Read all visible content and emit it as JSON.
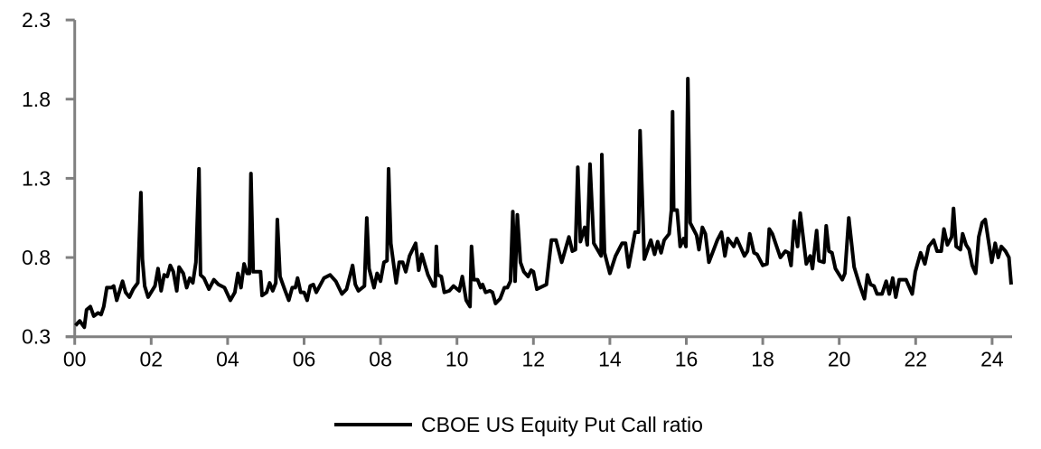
{
  "chart_data": {
    "type": "line",
    "title": "",
    "xlabel": "",
    "ylabel": "",
    "xlim": [
      0,
      24.6
    ],
    "ylim": [
      0.3,
      2.3
    ],
    "x_ticks": [
      0,
      2,
      4,
      6,
      8,
      10,
      12,
      14,
      16,
      18,
      20,
      22,
      24
    ],
    "x_tick_labels": [
      "00",
      "02",
      "04",
      "06",
      "08",
      "10",
      "12",
      "14",
      "16",
      "18",
      "20",
      "22",
      "24"
    ],
    "y_ticks": [
      0.3,
      0.8,
      1.3,
      1.8,
      2.3
    ],
    "y_tick_labels": [
      "0.3",
      "0.8",
      "1.3",
      "1.8",
      "2.3"
    ],
    "grid": false,
    "legend_position": "bottom",
    "colors": {
      "line": "#000000",
      "axis": "#808080"
    },
    "series": [
      {
        "name": "CBOE US Equity Put Call ratio",
        "x": [
          0.02,
          0.13,
          0.25,
          0.31,
          0.41,
          0.5,
          0.61,
          0.69,
          0.76,
          0.84,
          0.96,
          1.02,
          1.1,
          1.25,
          1.33,
          1.43,
          1.53,
          1.65,
          1.73,
          1.77,
          1.83,
          1.92,
          2.1,
          2.18,
          2.26,
          2.34,
          2.42,
          2.5,
          2.58,
          2.67,
          2.73,
          2.84,
          2.93,
          3.01,
          3.09,
          3.17,
          3.25,
          3.29,
          3.38,
          3.51,
          3.64,
          3.76,
          3.92,
          4.07,
          4.19,
          4.27,
          4.35,
          4.43,
          4.51,
          4.57,
          4.61,
          4.67,
          4.86,
          4.9,
          5.02,
          5.1,
          5.18,
          5.26,
          5.3,
          5.37,
          5.49,
          5.6,
          5.69,
          5.77,
          5.83,
          5.91,
          6.0,
          6.08,
          6.16,
          6.24,
          6.32,
          6.52,
          6.68,
          6.83,
          6.99,
          7.11,
          7.27,
          7.34,
          7.42,
          7.58,
          7.64,
          7.7,
          7.83,
          7.91,
          8.0,
          8.09,
          8.17,
          8.21,
          8.27,
          8.41,
          8.49,
          8.58,
          8.66,
          8.76,
          8.84,
          8.92,
          9.0,
          9.08,
          9.24,
          9.38,
          9.43,
          9.46,
          9.5,
          9.59,
          9.67,
          9.8,
          9.91,
          10.06,
          10.14,
          10.24,
          10.34,
          10.38,
          10.44,
          10.54,
          10.62,
          10.67,
          10.75,
          10.86,
          10.93,
          11.01,
          11.13,
          11.24,
          11.32,
          11.4,
          11.46,
          11.52,
          11.58,
          11.66,
          11.75,
          11.86,
          11.94,
          12.0,
          12.09,
          12.34,
          12.47,
          12.59,
          12.74,
          12.93,
          13.02,
          13.1,
          13.16,
          13.23,
          13.34,
          13.41,
          13.48,
          13.58,
          13.77,
          13.79,
          13.86,
          14.0,
          14.15,
          14.32,
          14.41,
          14.49,
          14.66,
          14.75,
          14.79,
          14.9,
          15.07,
          15.17,
          15.25,
          15.34,
          15.42,
          15.55,
          15.61,
          15.64,
          15.67,
          15.76,
          15.84,
          15.93,
          15.99,
          16.04,
          16.1,
          16.27,
          16.33,
          16.42,
          16.5,
          16.59,
          16.81,
          16.92,
          17.01,
          17.09,
          17.24,
          17.32,
          17.52,
          17.6,
          17.66,
          17.77,
          17.85,
          18.0,
          18.11,
          18.17,
          18.25,
          18.46,
          18.59,
          18.67,
          18.74,
          18.82,
          18.91,
          18.98,
          19.14,
          19.24,
          19.3,
          19.41,
          19.47,
          19.6,
          19.66,
          19.73,
          19.81,
          19.9,
          20.08,
          20.15,
          20.25,
          20.39,
          20.53,
          20.66,
          20.74,
          20.82,
          20.91,
          20.99,
          21.12,
          21.23,
          21.31,
          21.4,
          21.48,
          21.57,
          21.75,
          21.91,
          21.99,
          22.13,
          22.24,
          22.34,
          22.47,
          22.56,
          22.67,
          22.74,
          22.83,
          22.94,
          22.99,
          23.06,
          23.17,
          23.23,
          23.32,
          23.4,
          23.48,
          23.57,
          23.65,
          23.74,
          23.82,
          23.99,
          24.08,
          24.16,
          24.24,
          24.35,
          24.44,
          24.5
        ],
        "y": [
          0.37,
          0.4,
          0.36,
          0.47,
          0.49,
          0.43,
          0.45,
          0.44,
          0.49,
          0.61,
          0.61,
          0.62,
          0.53,
          0.65,
          0.58,
          0.55,
          0.6,
          0.64,
          1.21,
          0.79,
          0.62,
          0.55,
          0.62,
          0.73,
          0.59,
          0.69,
          0.68,
          0.75,
          0.71,
          0.59,
          0.74,
          0.7,
          0.61,
          0.67,
          0.64,
          0.77,
          1.36,
          0.69,
          0.67,
          0.6,
          0.66,
          0.63,
          0.61,
          0.53,
          0.58,
          0.7,
          0.61,
          0.76,
          0.7,
          0.7,
          1.33,
          0.71,
          0.71,
          0.56,
          0.58,
          0.64,
          0.59,
          0.64,
          1.04,
          0.68,
          0.6,
          0.53,
          0.61,
          0.61,
          0.67,
          0.58,
          0.58,
          0.53,
          0.62,
          0.63,
          0.58,
          0.67,
          0.69,
          0.65,
          0.57,
          0.6,
          0.75,
          0.63,
          0.59,
          0.62,
          1.05,
          0.73,
          0.61,
          0.7,
          0.65,
          0.77,
          0.78,
          1.36,
          0.89,
          0.64,
          0.77,
          0.77,
          0.71,
          0.81,
          0.85,
          0.89,
          0.72,
          0.82,
          0.69,
          0.62,
          0.62,
          0.87,
          0.69,
          0.68,
          0.58,
          0.59,
          0.62,
          0.59,
          0.68,
          0.53,
          0.49,
          0.87,
          0.66,
          0.66,
          0.61,
          0.63,
          0.58,
          0.59,
          0.58,
          0.51,
          0.54,
          0.61,
          0.61,
          0.65,
          1.09,
          0.65,
          1.07,
          0.77,
          0.71,
          0.68,
          0.72,
          0.71,
          0.6,
          0.63,
          0.91,
          0.91,
          0.77,
          0.93,
          0.84,
          0.85,
          1.37,
          0.9,
          0.99,
          0.88,
          1.39,
          0.89,
          0.81,
          1.45,
          0.83,
          0.7,
          0.81,
          0.89,
          0.89,
          0.74,
          0.96,
          0.96,
          1.6,
          0.79,
          0.91,
          0.82,
          0.9,
          0.83,
          0.91,
          0.95,
          1.1,
          1.72,
          1.1,
          1.1,
          0.87,
          0.92,
          0.87,
          1.93,
          1.02,
          0.94,
          0.85,
          0.99,
          0.95,
          0.77,
          0.91,
          0.96,
          0.81,
          0.92,
          0.87,
          0.92,
          0.81,
          0.84,
          0.95,
          0.83,
          0.82,
          0.75,
          0.76,
          0.98,
          0.95,
          0.8,
          0.84,
          0.83,
          0.75,
          1.03,
          0.87,
          1.08,
          0.76,
          0.81,
          0.73,
          0.97,
          0.78,
          0.77,
          1.0,
          0.84,
          0.83,
          0.73,
          0.66,
          0.7,
          1.05,
          0.74,
          0.63,
          0.54,
          0.69,
          0.63,
          0.62,
          0.57,
          0.57,
          0.65,
          0.57,
          0.67,
          0.55,
          0.66,
          0.66,
          0.57,
          0.71,
          0.83,
          0.76,
          0.87,
          0.91,
          0.84,
          0.84,
          0.98,
          0.88,
          0.93,
          1.11,
          0.87,
          0.85,
          0.95,
          0.88,
          0.85,
          0.75,
          0.7,
          0.93,
          1.02,
          1.04,
          0.77,
          0.89,
          0.8,
          0.87,
          0.84,
          0.8,
          0.63
        ]
      }
    ]
  }
}
